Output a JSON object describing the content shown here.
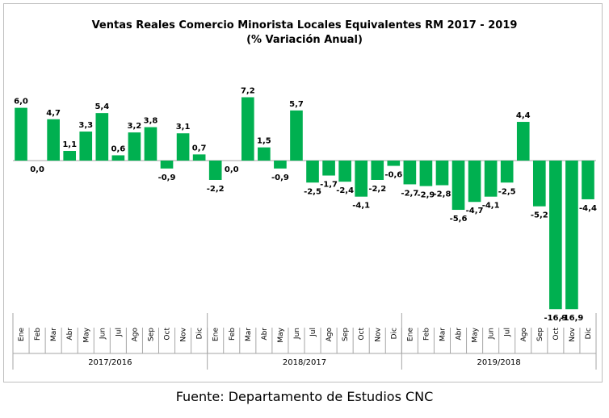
{
  "chart_data": {
    "type": "bar",
    "title": "Ventas Reales Comercio Minorista  Locales Equivalentes  RM 2017 - 2019",
    "subtitle": "(% Variación Anual)",
    "categories": [
      "Ene",
      "Feb",
      "Mar",
      "Abr",
      "May",
      "Jun",
      "Jul",
      "Ago",
      "Sep",
      "Oct",
      "Nov",
      "Dic",
      "Ene",
      "Feb",
      "Mar",
      "Abr",
      "May",
      "Jun",
      "Jul",
      "Ago",
      "Sep",
      "Oct",
      "Nov",
      "Dic",
      "Ene",
      "Feb",
      "Mar",
      "Abr",
      "May",
      "Jun",
      "Jul",
      "Ago",
      "Sep",
      "Oct",
      "Nov",
      "Dic"
    ],
    "groups": [
      {
        "label": "2017/2016",
        "count": 12
      },
      {
        "label": "2018/2017",
        "count": 12
      },
      {
        "label": "2019/2018",
        "count": 12
      }
    ],
    "values": [
      6.0,
      0.0,
      4.7,
      1.1,
      3.3,
      5.4,
      0.6,
      3.2,
      3.8,
      -0.9,
      3.1,
      0.7,
      -2.2,
      0.0,
      7.2,
      1.5,
      -0.9,
      5.7,
      -2.5,
      -1.7,
      -2.4,
      -4.1,
      -2.2,
      -0.6,
      -2.7,
      -2.9,
      -2.8,
      -5.6,
      -4.7,
      -4.1,
      -2.5,
      4.4,
      -5.2,
      -16.9,
      -16.9,
      -4.4
    ],
    "labels": [
      "6,0",
      "0,0",
      "4,7",
      "1,1",
      "3,3",
      "5,4",
      "0,6",
      "3,2",
      "3,8",
      "-0,9",
      "3,1",
      "0,7",
      "-2,2",
      "0,0",
      "7,2",
      "1,5",
      "-0,9",
      "5,7",
      "-2,5",
      "-1,7",
      "-2,4",
      "-4,1",
      "-2,2",
      "-0,6",
      "-2,7",
      "-2,9",
      "-2,8",
      "-5,6",
      "-4,7",
      "-4,1",
      "-2,5",
      "4,4",
      "-5,2",
      "-16,9",
      "-16,9",
      "-4,4"
    ],
    "xlabel": "",
    "ylabel": "",
    "ylim": [
      -16.9,
      7.2
    ],
    "grid": false,
    "bar_color": "#00b050"
  },
  "source": "Fuente: Departamento de Estudios CNC"
}
